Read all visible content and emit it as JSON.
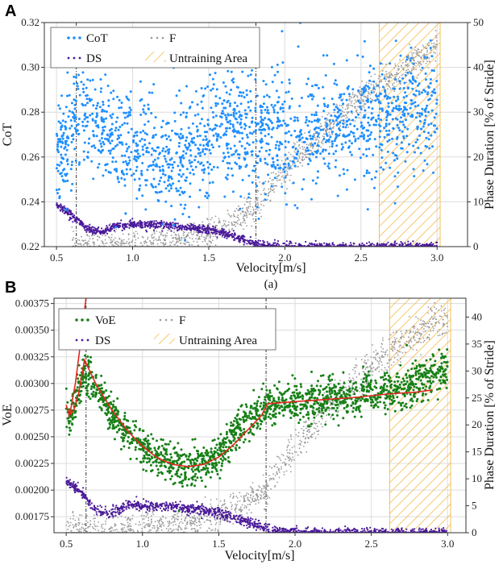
{
  "figure": {
    "panel_a_letter": "A",
    "panel_b_letter": "B",
    "caption_a": "(a)"
  },
  "colors": {
    "cot": "#1f8fff",
    "voe": "#178017",
    "f": "#9a9a9a",
    "ds": "#4b1a9a",
    "fit": "#e0281e",
    "hatch": "#f2b233"
  },
  "chart_data": [
    {
      "type": "scatter",
      "panel": "A",
      "title": "",
      "xlabel": "Velocity[m/s]",
      "ylabel": "CoT",
      "y2label": "Phase Duration [% of Stride]",
      "xlim": [
        0.42,
        3.2
      ],
      "ylim": [
        0.22,
        0.32
      ],
      "y2lim": [
        0,
        50
      ],
      "xticks": [
        "0.5",
        "1.0",
        "1.5",
        "2.0",
        "2.5",
        "3.0"
      ],
      "yticks": [
        "0.22",
        "0.24",
        "0.26",
        "0.28",
        "0.30",
        "0.32"
      ],
      "y2ticks": [
        "0",
        "10",
        "20",
        "30",
        "40",
        "50"
      ],
      "vlines": [
        0.63,
        1.81
      ],
      "untraining_area": [
        2.62,
        3.02
      ],
      "legend": {
        "placement": "top-left",
        "entries": [
          "CoT",
          "F",
          "DS",
          "Untraining Area"
        ]
      },
      "series": [
        {
          "name": "CoT",
          "axis": "left",
          "velocity": [
            0.5,
            0.55,
            0.6,
            0.63,
            0.8,
            1.0,
            1.2,
            1.3,
            1.5,
            1.65,
            1.8,
            2.0,
            2.3,
            2.6,
            2.8,
            3.0
          ],
          "values": [
            0.261,
            0.263,
            0.272,
            0.28,
            0.272,
            0.266,
            0.259,
            0.256,
            0.266,
            0.276,
            0.268,
            0.27,
            0.272,
            0.277,
            0.281,
            0.283
          ],
          "spread": 0.013
        },
        {
          "name": "F",
          "axis": "right",
          "velocity": [
            0.6,
            0.9,
            1.2,
            1.5,
            1.65,
            1.8,
            2.0,
            2.2,
            2.5,
            2.8,
            3.0
          ],
          "values": [
            0,
            0.2,
            0.8,
            2.5,
            5,
            9,
            17,
            24,
            33,
            40,
            45
          ],
          "spread": 1.6
        },
        {
          "name": "DS",
          "axis": "right",
          "velocity": [
            0.5,
            0.6,
            0.7,
            0.8,
            0.9,
            1.0,
            1.2,
            1.4,
            1.55,
            1.7,
            1.8,
            1.85,
            2.0,
            2.5,
            3.0
          ],
          "values": [
            9.5,
            7,
            4,
            3.3,
            4.7,
            5,
            4.7,
            4.2,
            3.5,
            2,
            0.7,
            0.2,
            0,
            0,
            0
          ],
          "spread": 0.45
        }
      ]
    },
    {
      "type": "scatter",
      "panel": "B",
      "title": "",
      "xlabel": "Velocity[m/s]",
      "ylabel": "VoE",
      "y2label": "Phase Duration [% of Stride]",
      "xlim": [
        0.42,
        3.12
      ],
      "ylim": [
        0.0016,
        0.0038
      ],
      "y2lim": [
        0,
        43.5
      ],
      "xticks": [
        "0.5",
        "1.0",
        "1.5",
        "2.0",
        "2.5",
        "3.0"
      ],
      "yticks": [
        "0.00175",
        "0.00200",
        "0.00225",
        "0.00250",
        "0.00275",
        "0.00300",
        "0.00325",
        "0.00350",
        "0.00375"
      ],
      "y2ticks": [
        "0",
        "5",
        "10",
        "15",
        "20",
        "25",
        "30",
        "35",
        "40"
      ],
      "vlines": [
        0.63,
        1.81
      ],
      "untraining_area": [
        2.62,
        3.02
      ],
      "legend": {
        "placement": "top-left",
        "entries": [
          "VoE",
          "F",
          "DS",
          "Untraining Area"
        ]
      },
      "series": [
        {
          "name": "VoE",
          "axis": "left",
          "velocity": [
            0.5,
            0.52,
            0.55,
            0.58,
            0.62,
            0.7,
            0.8,
            1.0,
            1.2,
            1.35,
            1.5,
            1.65,
            1.8,
            2.0,
            2.3,
            2.6,
            2.8,
            3.0
          ],
          "values": [
            0.00282,
            0.00265,
            0.00275,
            0.0029,
            0.0031,
            0.00295,
            0.0027,
            0.0024,
            0.00224,
            0.00222,
            0.00232,
            0.00262,
            0.00278,
            0.00284,
            0.00287,
            0.00292,
            0.003,
            0.00315
          ],
          "spread": 9e-05
        },
        {
          "name": "F",
          "axis": "right",
          "velocity": [
            0.5,
            0.7,
            1.0,
            1.3,
            1.6,
            1.8,
            2.0,
            2.2,
            2.5,
            2.8,
            3.0
          ],
          "values": [
            0.3,
            0.6,
            0.9,
            1.5,
            4,
            8,
            16,
            23,
            31,
            37,
            40
          ],
          "spread": 1.5
        },
        {
          "name": "DS",
          "axis": "right",
          "velocity": [
            0.5,
            0.6,
            0.7,
            0.8,
            0.9,
            1.0,
            1.2,
            1.4,
            1.6,
            1.75,
            1.85,
            2.0,
            2.5,
            3.0
          ],
          "values": [
            9.5,
            7.5,
            4,
            3.6,
            5,
            5.1,
            4.8,
            4.2,
            2.8,
            1.3,
            0.3,
            0,
            0,
            0
          ],
          "spread": 0.45
        },
        {
          "name": "VoE fit",
          "axis": "left",
          "velocity": [
            0.5,
            0.52,
            0.55,
            0.58,
            0.62,
            0.64,
            0.7,
            0.8,
            0.9,
            1.0,
            1.1,
            1.2,
            1.3,
            1.4,
            1.5,
            1.6,
            1.7,
            1.78,
            1.82,
            2.0,
            2.2,
            2.4,
            2.6,
            2.8,
            2.9
          ],
          "values": [
            0.0028,
            0.0027,
            0.00275,
            0.0029,
            0.00322,
            0.00316,
            0.00298,
            0.00275,
            0.00256,
            0.00241,
            0.0023,
            0.00224,
            0.00222,
            0.00224,
            0.00231,
            0.00243,
            0.00258,
            0.0027,
            0.00281,
            0.00283,
            0.00285,
            0.00287,
            0.0029,
            0.00292,
            0.00294
          ]
        },
        {
          "name": "VoE fit (left segment)",
          "axis": "left",
          "velocity": [
            0.52,
            0.56,
            0.6,
            0.63
          ],
          "values": [
            0.00268,
            0.003,
            0.00345,
            0.0038
          ]
        }
      ]
    }
  ]
}
